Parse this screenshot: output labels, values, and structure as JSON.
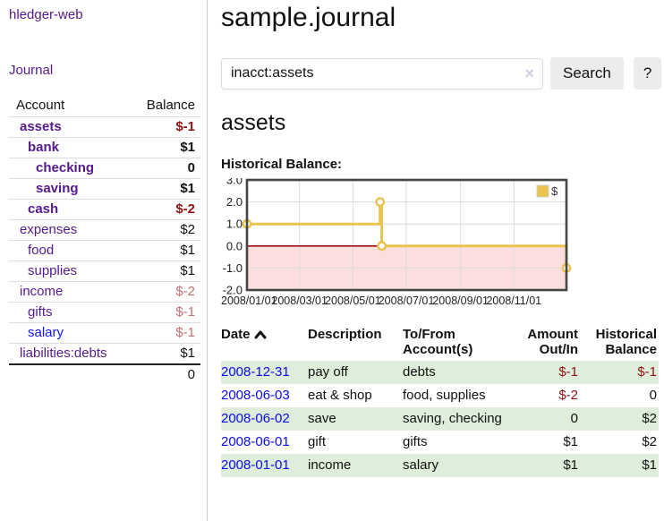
{
  "app": {
    "brand": "hledger-web"
  },
  "sidebar": {
    "journal_label": "Journal",
    "accounts": {
      "headers": {
        "account": "Account",
        "balance": "Balance"
      },
      "rows": [
        {
          "account": "assets",
          "level": 1,
          "bold": true,
          "link": "purple",
          "balance": "$-1",
          "balance_class": "neg-strong"
        },
        {
          "account": "bank",
          "level": 2,
          "bold": true,
          "link": "purple",
          "balance": "$1",
          "balance_class": ""
        },
        {
          "account": "checking",
          "level": 3,
          "bold": true,
          "link": "purple",
          "balance": "0",
          "balance_class": ""
        },
        {
          "account": "saving",
          "level": 3,
          "bold": true,
          "link": "purple",
          "balance": "$1",
          "balance_class": ""
        },
        {
          "account": "cash",
          "level": 2,
          "bold": true,
          "link": "purple",
          "balance": "$-2",
          "balance_class": "neg-strong"
        },
        {
          "account": "expenses",
          "level": 1,
          "bold": false,
          "link": "purple",
          "balance": "$2",
          "balance_class": ""
        },
        {
          "account": "food",
          "level": 2,
          "bold": false,
          "link": "purple",
          "balance": "$1",
          "balance_class": ""
        },
        {
          "account": "supplies",
          "level": 2,
          "bold": false,
          "link": "purple",
          "balance": "$1",
          "balance_class": ""
        },
        {
          "account": "income",
          "level": 1,
          "bold": false,
          "link": "purple",
          "balance": "$-2",
          "balance_class": "neg-weak"
        },
        {
          "account": "gifts",
          "level": 2,
          "bold": false,
          "link": "purple",
          "balance": "$-1",
          "balance_class": "neg-weak"
        },
        {
          "account": "salary",
          "level": 2,
          "bold": false,
          "link": "blue",
          "balance": "$-1",
          "balance_class": "neg-weak"
        },
        {
          "account": "liabilities:debts",
          "level": 1,
          "bold": false,
          "link": "purple",
          "balance": "$1",
          "balance_class": ""
        }
      ],
      "total": "0"
    }
  },
  "main": {
    "title": "sample.journal",
    "search": {
      "value": "inacct:assets",
      "clear_icon": "×",
      "button_label": "Search",
      "help_label": "?"
    },
    "account_heading": "assets",
    "chart_heading": "Historical Balance:"
  },
  "chart_data": {
    "type": "line",
    "step": true,
    "title": "Historical Balance",
    "series": [
      {
        "name": "$",
        "color": "#e9c34d",
        "points": [
          [
            "2008-01-01",
            1.0
          ],
          [
            "2008-06-01",
            2.0
          ],
          [
            "2008-06-03",
            0.0
          ],
          [
            "2008-12-31",
            -1.0
          ]
        ]
      }
    ],
    "xlim": [
      "2008-01-01",
      "2008-12-31"
    ],
    "ylim": [
      -2.0,
      3.0
    ],
    "yticks": [
      {
        "v": 3,
        "label": "3.0"
      },
      {
        "v": 2,
        "label": "2.0"
      },
      {
        "v": 1,
        "label": "1.0"
      },
      {
        "v": 0,
        "label": "0.0"
      },
      {
        "v": -1,
        "label": "-1.0"
      },
      {
        "v": -2,
        "label": "-2.0"
      }
    ],
    "xticks": [
      "2008/01/01",
      "2008/03/01",
      "2008/05/01",
      "2008/07/01",
      "2008/09/01",
      "2008/11/01"
    ],
    "grid": true,
    "negative_fill": "#fbdede",
    "zero_line_color": "#a01010",
    "border_color": "#454545",
    "grid_color": "#dcdcdc",
    "legend": {
      "position": "top-right",
      "label": "$",
      "swatch_color": "#e9c34d"
    }
  },
  "register": {
    "headers": {
      "date": "Date",
      "description": "Description",
      "accounts": "To/From Account(s)",
      "amount": "Amount Out/In",
      "balance": "Historical Balance"
    },
    "rows": [
      {
        "date": "2008-12-31",
        "description": "pay off",
        "accounts": "debts",
        "amount": "$-1",
        "balance": "$-1"
      },
      {
        "date": "2008-06-03",
        "description": "eat & shop",
        "accounts": "food, supplies",
        "amount": "$-2",
        "balance": "0"
      },
      {
        "date": "2008-06-02",
        "description": "save",
        "accounts": "saving, checking",
        "amount": "0",
        "balance": "$2"
      },
      {
        "date": "2008-06-01",
        "description": "gift",
        "accounts": "gifts",
        "amount": "$1",
        "balance": "$2"
      },
      {
        "date": "2008-01-01",
        "description": "income",
        "accounts": "salary",
        "amount": "$1",
        "balance": "$1"
      }
    ]
  }
}
